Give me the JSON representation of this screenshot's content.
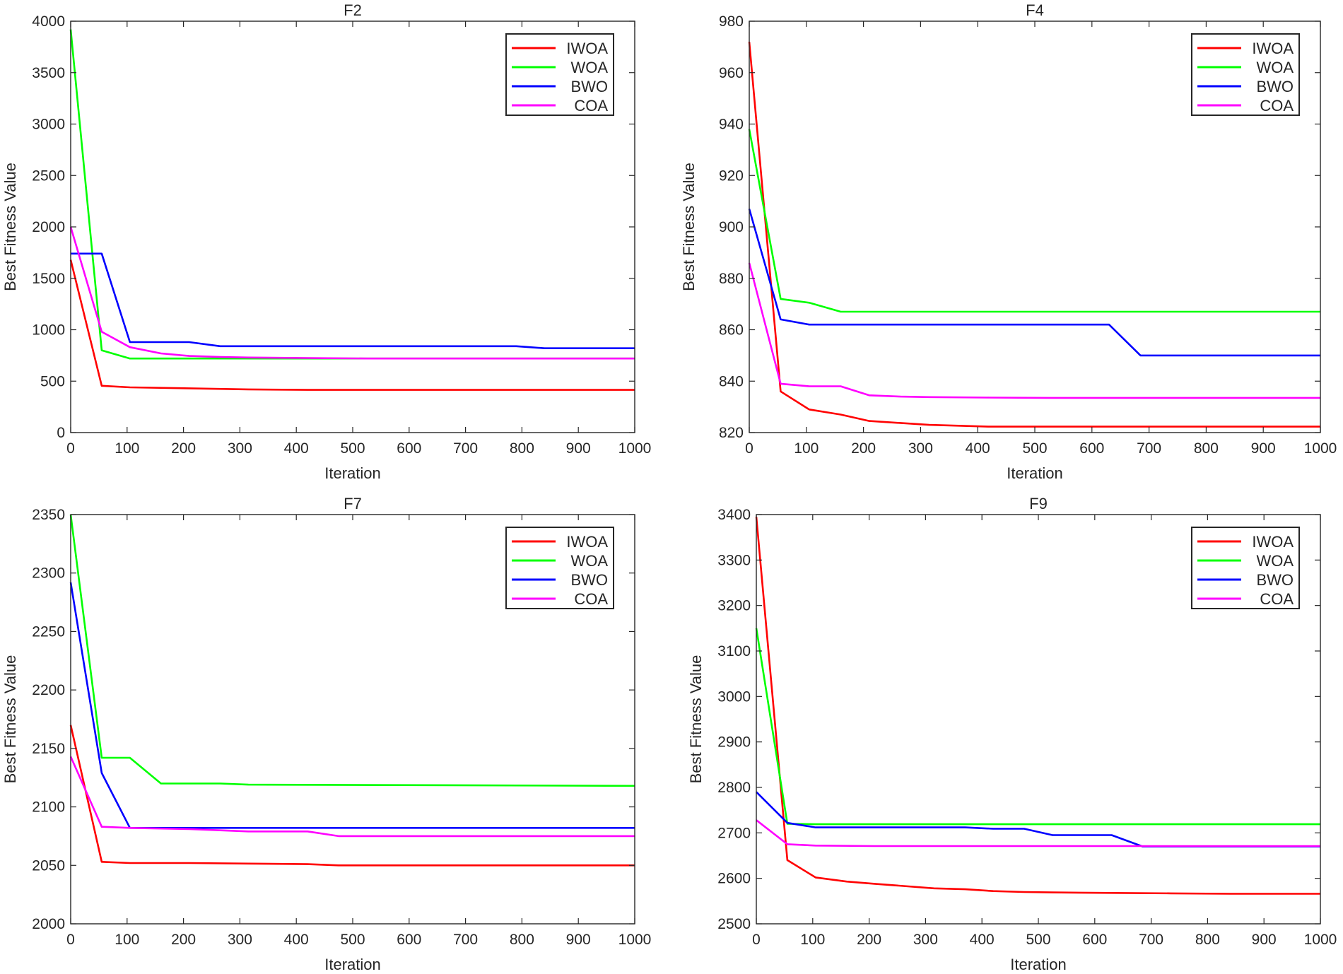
{
  "chart_data": [
    {
      "type": "line",
      "title": "F2",
      "xlabel": "Iteration",
      "ylabel": "Best Fitness Value",
      "xlim": [
        0,
        1000
      ],
      "ylim": [
        0,
        4000
      ],
      "xticks": [
        "0",
        "100",
        "200",
        "300",
        "400",
        "500",
        "600",
        "700",
        "800",
        "900",
        "1000"
      ],
      "yticks": [
        "0",
        "500",
        "1000",
        "1500",
        "2000",
        "2500",
        "3000",
        "3500",
        "4000"
      ],
      "legend_position": "top-right",
      "grid": false,
      "series": [
        {
          "name": "IWOA",
          "color": "#ff0000",
          "x": [
            0,
            55,
            105,
            210,
            315,
            420,
            525,
            630,
            735,
            840,
            1000
          ],
          "y": [
            1680,
            455,
            440,
            430,
            420,
            415,
            415,
            415,
            415,
            415,
            415
          ]
        },
        {
          "name": "WOA",
          "color": "#00ff00",
          "x": [
            0,
            55,
            105,
            210,
            315,
            420,
            1000
          ],
          "y": [
            3920,
            800,
            720,
            720,
            720,
            720,
            720
          ]
        },
        {
          "name": "BWO",
          "color": "#0000ff",
          "x": [
            0,
            55,
            105,
            210,
            265,
            790,
            840,
            1000
          ],
          "y": [
            1740,
            1740,
            880,
            880,
            840,
            840,
            820,
            820
          ]
        },
        {
          "name": "COA",
          "color": "#ff00ff",
          "x": [
            0,
            55,
            105,
            160,
            210,
            265,
            315,
            420,
            525,
            1000
          ],
          "y": [
            2000,
            980,
            830,
            770,
            745,
            735,
            730,
            725,
            720,
            720
          ]
        }
      ]
    },
    {
      "type": "line",
      "title": "F4",
      "xlabel": "Iteration",
      "ylabel": "Best Fitness Value",
      "xlim": [
        0,
        1000
      ],
      "ylim": [
        820,
        980
      ],
      "xticks": [
        "0",
        "100",
        "200",
        "300",
        "400",
        "500",
        "600",
        "700",
        "800",
        "900",
        "1000"
      ],
      "yticks": [
        "820",
        "840",
        "860",
        "880",
        "900",
        "920",
        "940",
        "960",
        "980"
      ],
      "legend_position": "top-right",
      "grid": false,
      "series": [
        {
          "name": "IWOA",
          "color": "#ff0000",
          "x": [
            0,
            55,
            105,
            160,
            210,
            315,
            420,
            525,
            630,
            1000
          ],
          "y": [
            972,
            836,
            829,
            827,
            824.5,
            823,
            822.3,
            822.3,
            822.3,
            822.3
          ]
        },
        {
          "name": "WOA",
          "color": "#00ff00",
          "x": [
            0,
            55,
            105,
            160,
            210,
            1000
          ],
          "y": [
            938,
            872,
            870.5,
            867,
            867,
            867
          ]
        },
        {
          "name": "BWO",
          "color": "#0000ff",
          "x": [
            0,
            55,
            105,
            630,
            685,
            1000
          ],
          "y": [
            907,
            864,
            862,
            862,
            850,
            850
          ]
        },
        {
          "name": "COA",
          "color": "#ff00ff",
          "x": [
            0,
            55,
            105,
            160,
            210,
            265,
            315,
            420,
            525,
            1000
          ],
          "y": [
            886,
            839,
            838,
            838,
            834.5,
            834,
            833.8,
            833.6,
            833.5,
            833.5
          ]
        }
      ]
    },
    {
      "type": "line",
      "title": "F7",
      "xlabel": "Iteration",
      "ylabel": "Best Fitness Value",
      "xlim": [
        0,
        1000
      ],
      "ylim": [
        2000,
        2350
      ],
      "xticks": [
        "0",
        "100",
        "200",
        "300",
        "400",
        "500",
        "600",
        "700",
        "800",
        "900",
        "1000"
      ],
      "yticks": [
        "2000",
        "2050",
        "2100",
        "2150",
        "2200",
        "2250",
        "2300",
        "2350"
      ],
      "legend_position": "top-right",
      "grid": false,
      "series": [
        {
          "name": "IWOA",
          "color": "#ff0000",
          "x": [
            0,
            55,
            105,
            210,
            315,
            420,
            475,
            1000
          ],
          "y": [
            2170,
            2053,
            2052,
            2052,
            2051.5,
            2051,
            2050,
            2050
          ]
        },
        {
          "name": "WOA",
          "color": "#00ff00",
          "x": [
            0,
            55,
            105,
            160,
            265,
            315,
            1000
          ],
          "y": [
            2350,
            2142,
            2142,
            2120,
            2120,
            2119,
            2118
          ]
        },
        {
          "name": "BWO",
          "color": "#0000ff",
          "x": [
            0,
            55,
            105,
            1000
          ],
          "y": [
            2292,
            2129,
            2082,
            2082
          ]
        },
        {
          "name": "COA",
          "color": "#ff00ff",
          "x": [
            0,
            55,
            105,
            210,
            265,
            315,
            420,
            475,
            1000
          ],
          "y": [
            2143,
            2083,
            2082,
            2081,
            2080,
            2079,
            2079,
            2075,
            2075
          ]
        }
      ]
    },
    {
      "type": "line",
      "title": "F9",
      "xlabel": "Iteration",
      "ylabel": "Best Fitness Value",
      "xlim": [
        0,
        1000
      ],
      "ylim": [
        2500,
        3400
      ],
      "xticks": [
        "0",
        "100",
        "200",
        "300",
        "400",
        "500",
        "600",
        "700",
        "800",
        "900",
        "1000"
      ],
      "yticks": [
        "2500",
        "2600",
        "2700",
        "2800",
        "2900",
        "3000",
        "3100",
        "3200",
        "3300",
        "3400"
      ],
      "legend_position": "top-right",
      "grid": false,
      "series": [
        {
          "name": "IWOA",
          "color": "#ff0000",
          "x": [
            0,
            55,
            105,
            160,
            210,
            315,
            370,
            420,
            475,
            525,
            630,
            735,
            840,
            1000
          ],
          "y": [
            3395,
            2640,
            2602,
            2593,
            2588,
            2578,
            2576,
            2572,
            2570,
            2569,
            2568,
            2567,
            2566,
            2566
          ]
        },
        {
          "name": "WOA",
          "color": "#00ff00",
          "x": [
            0,
            55,
            105,
            1000
          ],
          "y": [
            3150,
            2720,
            2719,
            2719
          ]
        },
        {
          "name": "BWO",
          "color": "#0000ff",
          "x": [
            0,
            55,
            105,
            370,
            420,
            475,
            525,
            630,
            685,
            1000
          ],
          "y": [
            2790,
            2722,
            2712,
            2712,
            2709,
            2709,
            2695,
            2695,
            2670,
            2670
          ]
        },
        {
          "name": "COA",
          "color": "#ff00ff",
          "x": [
            0,
            55,
            105,
            210,
            1000
          ],
          "y": [
            2728,
            2675,
            2672,
            2671,
            2671
          ]
        }
      ]
    }
  ]
}
